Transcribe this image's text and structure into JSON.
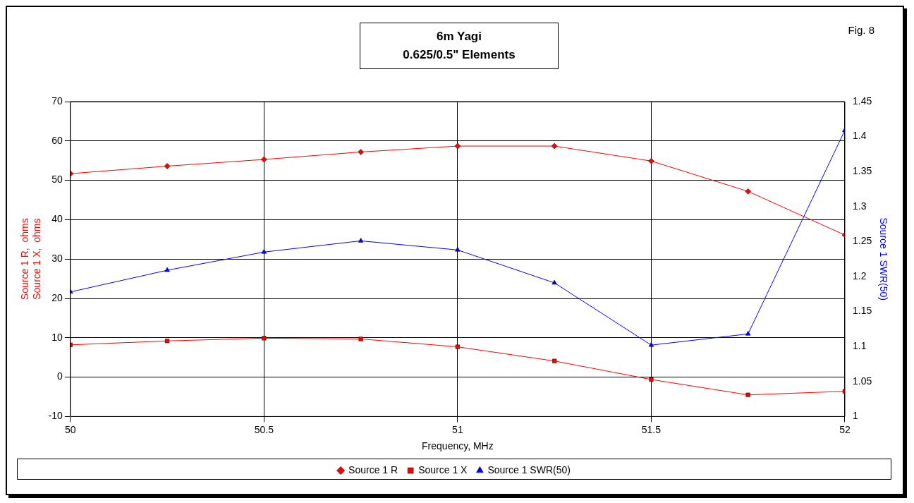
{
  "chart_data": {
    "type": "line",
    "title": "6m Yagi\n0.625/0.5\" Elements",
    "xlabel": "Frequency, MHz",
    "ylabel": "Source 1 R,  ohms\nSource 1 X,  ohms",
    "y2label": "Source 1 SWR(50)",
    "annotations": [
      "Fig. 8"
    ],
    "x": [
      50,
      50.25,
      50.5,
      50.75,
      51,
      51.25,
      51.5,
      51.75,
      52
    ],
    "xlim": [
      50,
      52
    ],
    "xticks": [
      50,
      50.5,
      51,
      51.5,
      52
    ],
    "ylim": [
      -10,
      70
    ],
    "yticks": [
      -10,
      0,
      10,
      20,
      30,
      40,
      50,
      60,
      70
    ],
    "y2lim": [
      1,
      1.45
    ],
    "y2ticks": [
      1,
      1.05,
      1.1,
      1.15,
      1.2,
      1.25,
      1.3,
      1.35,
      1.4,
      1.45
    ],
    "grid": true,
    "legend": "bottom",
    "series": [
      {
        "name": "Source 1 R",
        "color": "#ff0000",
        "marker": "diamond",
        "values": [
          51.7,
          53.6,
          55.3,
          57.2,
          58.7,
          58.7,
          54.9,
          47.2,
          36.1
        ]
      },
      {
        "name": "Source 1 X",
        "color": "#ff0000",
        "marker": "square",
        "values": [
          8.2,
          9.2,
          9.9,
          9.7,
          7.7,
          4.1,
          -0.6,
          -4.5,
          -3.6
        ]
      },
      {
        "name": "Source 1 SWR(50)",
        "color": "#0000ff",
        "marker": "triangle",
        "axis": "y2",
        "values": [
          1.178,
          1.209,
          1.235,
          1.251,
          1.238,
          1.191,
          1.102,
          1.118,
          1.409
        ]
      }
    ]
  }
}
